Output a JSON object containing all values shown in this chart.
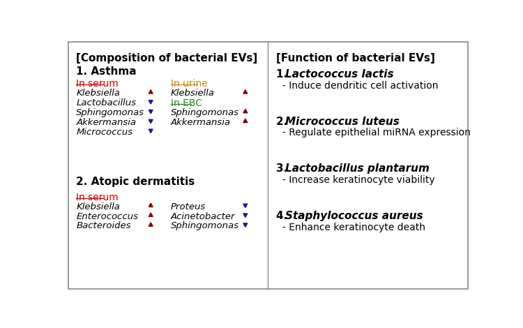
{
  "left_title": "[Composition of bacterial EVs]",
  "right_title": "[Function of bacterial EVs]",
  "section1_title": "1. Asthma",
  "section2_title": "2. Atopic dermatitis",
  "serum_label": "In serum",
  "urine_label": "In urine",
  "ebc_label": "In EBC",
  "asthma_serum": [
    {
      "name": "Klebsiella",
      "up": true
    },
    {
      "name": "Lactobacillus",
      "up": false
    },
    {
      "name": "Sphingomonas",
      "up": false
    },
    {
      "name": "Akkermansia",
      "up": false
    },
    {
      "name": "Micrococcus",
      "up": false
    }
  ],
  "asthma_urine": [
    {
      "name": "Klebsiella",
      "up": true
    }
  ],
  "asthma_ebc": [
    {
      "name": "Sphingomonas",
      "up": true
    },
    {
      "name": "Akkermansia",
      "up": true
    }
  ],
  "atopic_serum_left": [
    {
      "name": "Klebsiella",
      "up": true
    },
    {
      "name": "Enterococcus",
      "up": true
    },
    {
      "name": "Bacteroides",
      "up": true
    }
  ],
  "atopic_serum_right": [
    {
      "name": "Proteus",
      "up": false
    },
    {
      "name": "Acinetobacter",
      "up": false
    },
    {
      "name": "Sphingomonas",
      "up": false
    }
  ],
  "functions": [
    {
      "num": "1.",
      "name": "Lactococcus lactis",
      "desc": "- Induce dendritic cell activation"
    },
    {
      "num": "2.",
      "name": "Micrococcus luteus",
      "desc": "- Regulate epithelial miRNA expression"
    },
    {
      "num": "3.",
      "name": "Lactobacillus plantarum",
      "desc": "- Increase keratinocyte viability"
    },
    {
      "num": "4.",
      "name": "Staphylococcus aureus",
      "desc": "- Enhance keratinocyte death"
    }
  ],
  "up_color": "#8B0000",
  "down_color": "#1a1a8c",
  "serum_color": "#CC0000",
  "urine_color": "#CC8800",
  "ebc_color": "#228B22",
  "bg_color": "#ffffff",
  "border_color": "#888888",
  "divider_color": "#888888"
}
